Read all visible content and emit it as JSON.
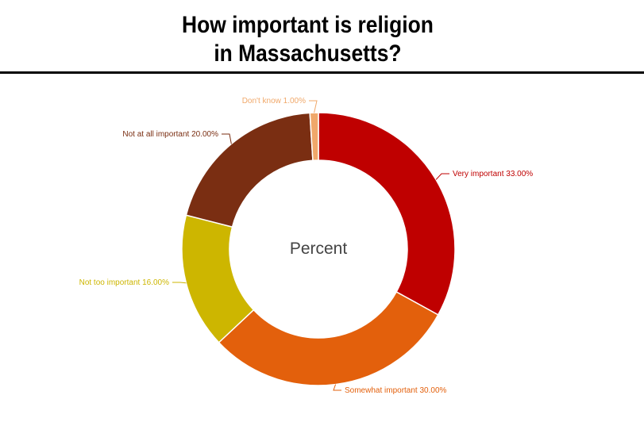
{
  "title_line1": "How important is religion",
  "title_line2": "in Massachusetts?",
  "chart_data": {
    "type": "pie",
    "style": "donut",
    "center_label": "Percent",
    "slices": [
      {
        "label": "Very important 33.00%",
        "value": 33,
        "color": "#bf0000"
      },
      {
        "label": "Somewhat important 30.00%",
        "value": 30,
        "color": "#e3600c"
      },
      {
        "label": "Not too important 16.00%",
        "value": 16,
        "color": "#cdb600"
      },
      {
        "label": "Not at all important 20.00%",
        "value": 20,
        "color": "#7a2e12"
      },
      {
        "label": "Don't know 1.00%",
        "value": 1,
        "color": "#f0a86a"
      }
    ]
  }
}
